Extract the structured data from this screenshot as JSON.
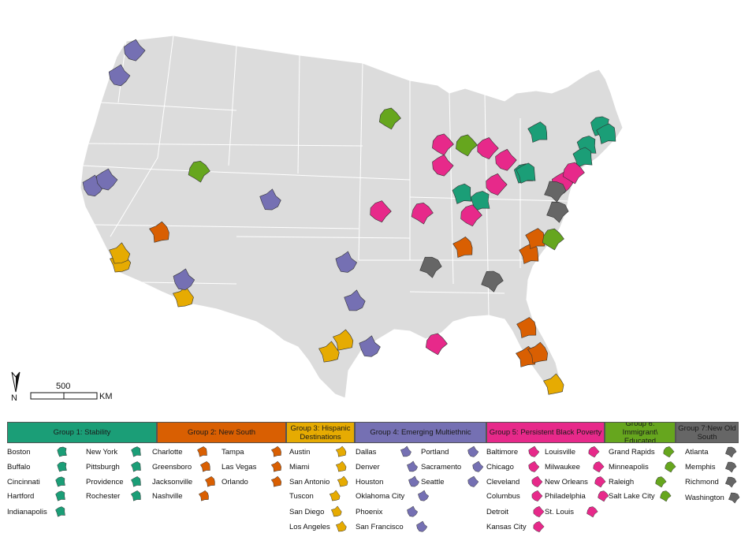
{
  "colors": {
    "land": "#dcdcdc",
    "border": "#ffffff",
    "g1": "#1b9e77",
    "g2": "#d95f02",
    "g3": "#e6ab02",
    "g4": "#7570b3",
    "g5": "#e7298a",
    "g6": "#66a61e",
    "g7": "#666666"
  },
  "scale": {
    "value": "500",
    "unit": "KM"
  },
  "north": {
    "label": "N"
  },
  "groups": [
    {
      "id": "g1",
      "label": "Group 1: Stability",
      "cities": [
        "Boston",
        "Buffalo",
        "Cincinnati",
        "Hartford",
        "Indianapolis",
        "New York",
        "Pittsburgh",
        "Providence",
        "Rochester"
      ]
    },
    {
      "id": "g2",
      "label": "Group 2: New South",
      "cities": [
        "Charlotte",
        "Greensboro",
        "Jacksonville",
        "Nashville",
        "Tampa",
        "Las Vegas",
        "Orlando"
      ]
    },
    {
      "id": "g3",
      "label": "Group 3: Hispanic Destinations",
      "cities": [
        "Austin",
        "Miami",
        "San Antonio",
        "Tuscon",
        "San Diego",
        "Los Angeles"
      ]
    },
    {
      "id": "g4",
      "label": "Group 4: Emerging Multiethnic",
      "cities": [
        "Dallas",
        "Denver",
        "Houston",
        "Oklahoma City",
        "Phoenix",
        "San Francisco",
        "Portland",
        "Sacramento",
        "Seattle"
      ]
    },
    {
      "id": "g5",
      "label": "Group 5: Persistent Black Poverty",
      "cities": [
        "Baltimore",
        "Chicago",
        "Cleveland",
        "Columbus",
        "Detroit",
        "Kansas City",
        "Louisville",
        "Milwaukee",
        "New Orleans",
        "Philadelphia",
        "St. Louis"
      ]
    },
    {
      "id": "g6",
      "label": "Group 6: Immigrant\\ Educated",
      "cities": [
        "Grand Rapids",
        "Minneapolis",
        "Raleigh",
        "Salt Lake City"
      ]
    },
    {
      "id": "g7",
      "label": "Group 7:New Old South",
      "cities": [
        "Atlanta",
        "Memphis",
        "Richmond",
        "Washington"
      ]
    }
  ]
}
